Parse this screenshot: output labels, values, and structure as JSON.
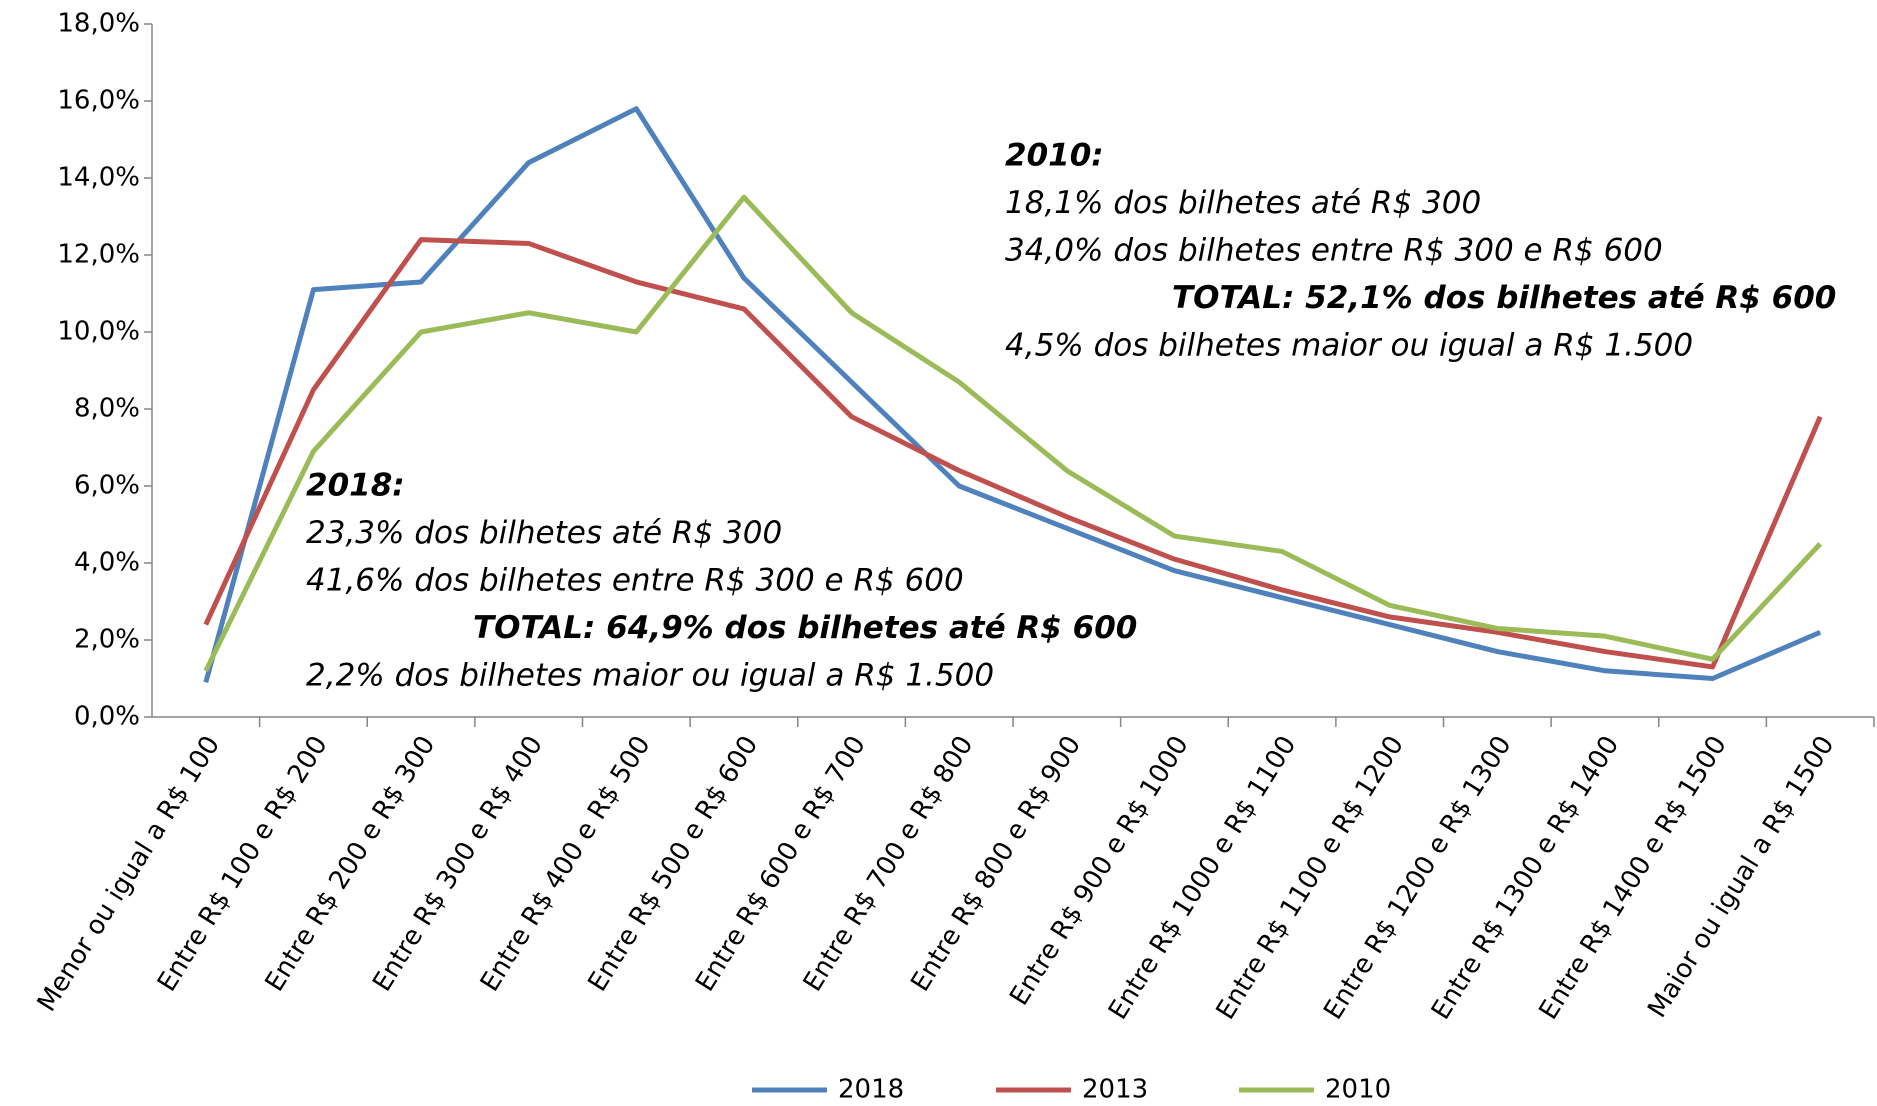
{
  "chart_data": {
    "type": "line",
    "categories": [
      "Menor ou igual a R$ 100",
      "Entre R$ 100 e R$ 200",
      "Entre R$ 200 e R$ 300",
      "Entre R$ 300 e R$ 400",
      "Entre R$ 400 e R$ 500",
      "Entre R$ 500 e R$ 600",
      "Entre R$ 600 e R$ 700",
      "Entre R$ 700 e R$ 800",
      "Entre R$ 800 e R$ 900",
      "Entre R$ 900 e R$ 1000",
      "Entre R$ 1000 e R$ 1100",
      "Entre R$ 1100 e R$ 1200",
      "Entre R$ 1200 e R$ 1300",
      "Entre R$ 1300 e R$ 1400",
      "Entre R$ 1400 e R$ 1500",
      "Maior ou igual a R$ 1500"
    ],
    "series": [
      {
        "name": "2018",
        "color": "#4f81bd",
        "values": [
          0.9,
          11.1,
          11.3,
          14.4,
          15.8,
          11.4,
          8.7,
          6.0,
          4.9,
          3.8,
          3.1,
          2.4,
          1.7,
          1.2,
          1.0,
          2.2
        ]
      },
      {
        "name": "2013",
        "color": "#c0504d",
        "values": [
          2.4,
          8.5,
          12.4,
          12.3,
          11.3,
          10.6,
          7.8,
          6.4,
          5.2,
          4.1,
          3.3,
          2.6,
          2.2,
          1.7,
          1.3,
          7.8
        ]
      },
      {
        "name": "2010",
        "color": "#9bbb59",
        "values": [
          1.2,
          6.9,
          10.0,
          10.5,
          10.0,
          13.5,
          10.5,
          8.7,
          6.4,
          4.7,
          4.3,
          2.9,
          2.3,
          2.1,
          1.5,
          4.5
        ]
      }
    ],
    "ylim": [
      0,
      18
    ],
    "yticks": [
      {
        "value": 0,
        "label": "0,0%"
      },
      {
        "value": 2,
        "label": "2,0%"
      },
      {
        "value": 4,
        "label": "4,0%"
      },
      {
        "value": 6,
        "label": "6,0%"
      },
      {
        "value": 8,
        "label": "8,0%"
      },
      {
        "value": 10,
        "label": "10,0%"
      },
      {
        "value": 12,
        "label": "12,0%"
      },
      {
        "value": 14,
        "label": "14,0%"
      },
      {
        "value": 16,
        "label": "16,0%"
      },
      {
        "value": 18,
        "label": "18,0%"
      }
    ],
    "grid": false,
    "legend": "bottom",
    "annotations": [
      {
        "color": "#0070c0",
        "heading": "2018:",
        "lines": [
          "23,3% dos bilhetes até R$ 300",
          "41,6% dos bilhetes entre R$ 300 e R$ 600"
        ],
        "total": "TOTAL: 64,9% dos bilhetes até R$ 600",
        "footer": "2,2% dos bilhetes maior ou igual a R$ 1.500"
      },
      {
        "color": "#4f7a1c",
        "heading": "2010:",
        "lines": [
          "18,1% dos bilhetes até R$ 300",
          "34,0% dos bilhetes entre R$ 300 e R$ 600"
        ],
        "total": "TOTAL: 52,1% dos bilhetes até R$ 600",
        "footer": "4,5% dos bilhetes maior ou igual a R$ 1.500"
      }
    ]
  }
}
